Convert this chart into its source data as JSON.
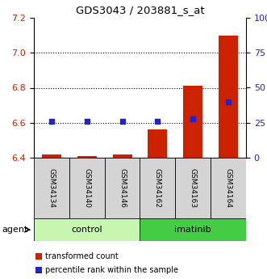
{
  "title": "GDS3043 / 203881_s_at",
  "samples": [
    "GSM34134",
    "GSM34140",
    "GSM34146",
    "GSM34162",
    "GSM34163",
    "GSM34164"
  ],
  "red_values": [
    6.42,
    6.41,
    6.42,
    6.56,
    6.81,
    7.1
  ],
  "blue_percentiles": [
    26,
    26,
    26,
    26,
    28,
    40
  ],
  "y_min": 6.4,
  "y_max": 7.2,
  "y_ticks_left": [
    6.4,
    6.6,
    6.8,
    7.0,
    7.2
  ],
  "y_ticks_right": [
    0,
    25,
    50,
    75,
    100
  ],
  "bar_baseline": 6.4,
  "groups": [
    {
      "label": "control",
      "indices": [
        0,
        1,
        2
      ],
      "color": "#c8f5b0"
    },
    {
      "label": "imatinib",
      "indices": [
        3,
        4,
        5
      ],
      "color": "#44cc44"
    }
  ],
  "bar_color": "#cc2200",
  "dot_color": "#2222cc",
  "tick_color_left": "#cc2200",
  "tick_color_right": "#2222cc",
  "sample_box_color": "#d4d4d4",
  "agent_label": "agent",
  "legend_red": "transformed count",
  "legend_blue": "percentile rank within the sample",
  "bar_width": 0.55
}
